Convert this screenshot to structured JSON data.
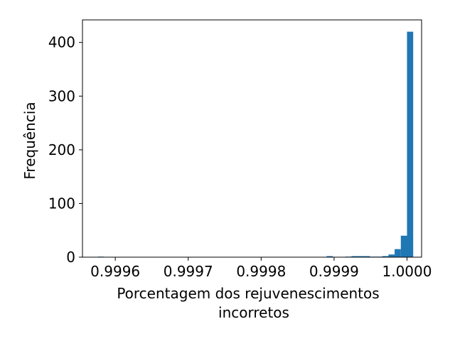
{
  "chart_data": {
    "type": "bar",
    "subtype": "histogram",
    "xlabel_lines": [
      "Porcentagem dos rejuvenescimentos",
      "incorretos"
    ],
    "ylabel": "Frequência",
    "xlim": [
      0.999555,
      1.00002
    ],
    "ylim": [
      0,
      442
    ],
    "xticks": [
      0.9996,
      0.9997,
      0.9998,
      0.9999,
      1.0
    ],
    "xtick_labels": [
      "0.9996",
      "0.9997",
      "0.9998",
      "0.9999",
      "1.0000"
    ],
    "yticks": [
      0,
      100,
      200,
      300,
      400
    ],
    "ytick_labels": [
      "0",
      "100",
      "200",
      "300",
      "400"
    ],
    "bins": {
      "start": 0.999576,
      "width": 8.48e-06,
      "counts": [
        1,
        0,
        0,
        0,
        0,
        0,
        0,
        0,
        0,
        0,
        0,
        0,
        0,
        0,
        0,
        0,
        0,
        0,
        0,
        0,
        0,
        0,
        0,
        0,
        0,
        0,
        0,
        0,
        0,
        0,
        0,
        0,
        0,
        0,
        0,
        0,
        0,
        2,
        0,
        0,
        1,
        2,
        2,
        2,
        1,
        1,
        2,
        5,
        15,
        40,
        420
      ]
    },
    "bar_color": "#1f77b4",
    "grid": false,
    "legend": "none"
  }
}
